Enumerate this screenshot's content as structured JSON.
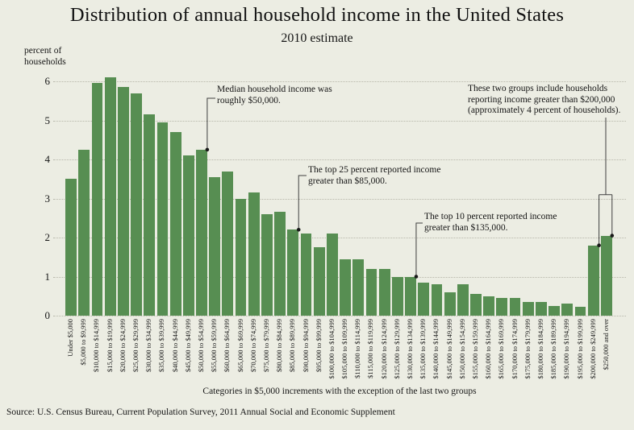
{
  "chart_data": {
    "type": "bar",
    "title": "Distribution of annual household income in the United States",
    "subtitle": "2010 estimate",
    "ylabel": "percent of\nhouseholds",
    "xlabel": "",
    "ylim": [
      0,
      6
    ],
    "y_ticks": [
      0,
      1,
      2,
      3,
      4,
      5,
      6
    ],
    "grid": "horizontal-dotted",
    "legend": "none",
    "bar_color": "#578e52",
    "background_color": "#ecede3",
    "categories": [
      "Under $5,000",
      "$5,000 to $9,999",
      "$10,000 to $14,999",
      "$15,000 to $19,999",
      "$20,000 to $24,999",
      "$25,000 to $29,999",
      "$30,000 to $34,999",
      "$35,000 to $39,999",
      "$40,000 to $44,999",
      "$45,000 to $49,999",
      "$50,000 to $54,999",
      "$55,000 to $59,999",
      "$60,000 to $64,999",
      "$65,000 to $69,999",
      "$70,000 to $74,999",
      "$75,000 to $79,999",
      "$80,000 to $84,999",
      "$85,000 to $89,999",
      "$90,000 to $94,999",
      "$95,000 to $99,999",
      "$100,000 to $104,999",
      "$105,000 to $109,999",
      "$110,000 to $114,999",
      "$115,000 to $119,999",
      "$120,000 to $124,999",
      "$125,000 to $129,999",
      "$130,000 to $134,999",
      "$135,000 to $139,999",
      "$140,000 to $144,999",
      "$145,000 to $149,999",
      "$150,000 to $154,999",
      "$155,000 to $159,999",
      "$160,000 to $164,999",
      "$165,000 to $169,999",
      "$170,000 to $174,999",
      "$175,000 to $179,999",
      "$180,000 to $184,999",
      "$185,000 to $189,999",
      "$190,000 to $194,999",
      "$195,000 to $199,999",
      "$200,000 to $249,999",
      "$250,000 and over"
    ],
    "values": [
      3.5,
      4.25,
      5.95,
      6.1,
      5.85,
      5.7,
      5.15,
      4.95,
      4.7,
      4.1,
      4.25,
      3.55,
      3.7,
      3.0,
      3.15,
      2.6,
      2.65,
      2.2,
      2.1,
      1.75,
      2.1,
      1.45,
      1.45,
      1.2,
      1.2,
      1.0,
      1.0,
      0.85,
      0.8,
      0.6,
      0.8,
      0.55,
      0.5,
      0.45,
      0.45,
      0.35,
      0.35,
      0.25,
      0.3,
      0.22,
      1.8,
      2.05
    ],
    "annotations": [
      {
        "id": "median",
        "lines": [
          "Median household income was",
          "roughly $50,000."
        ],
        "target_category": "$50,000 to $54,999"
      },
      {
        "id": "top25",
        "lines": [
          "The top 25 percent reported income",
          "greater than $85,000."
        ],
        "target_category": "$85,000 to $89,999"
      },
      {
        "id": "top10",
        "lines": [
          "The top 10 percent reported income",
          "greater than $135,000."
        ],
        "target_category": "$135,000 to $139,999"
      },
      {
        "id": "top-groups",
        "lines": [
          "These two groups include households",
          "reporting income greater than $200,000",
          "(approximately 4 percent of households)."
        ],
        "target_categories": [
          "$200,000 to $249,999",
          "$250,000 and over"
        ]
      }
    ],
    "footnote": "Categories in $5,000 increments with the exception of the last two groups",
    "source": "Source: U.S. Census Bureau, Current Population Survey, 2011 Annual Social and Economic Supplement"
  }
}
